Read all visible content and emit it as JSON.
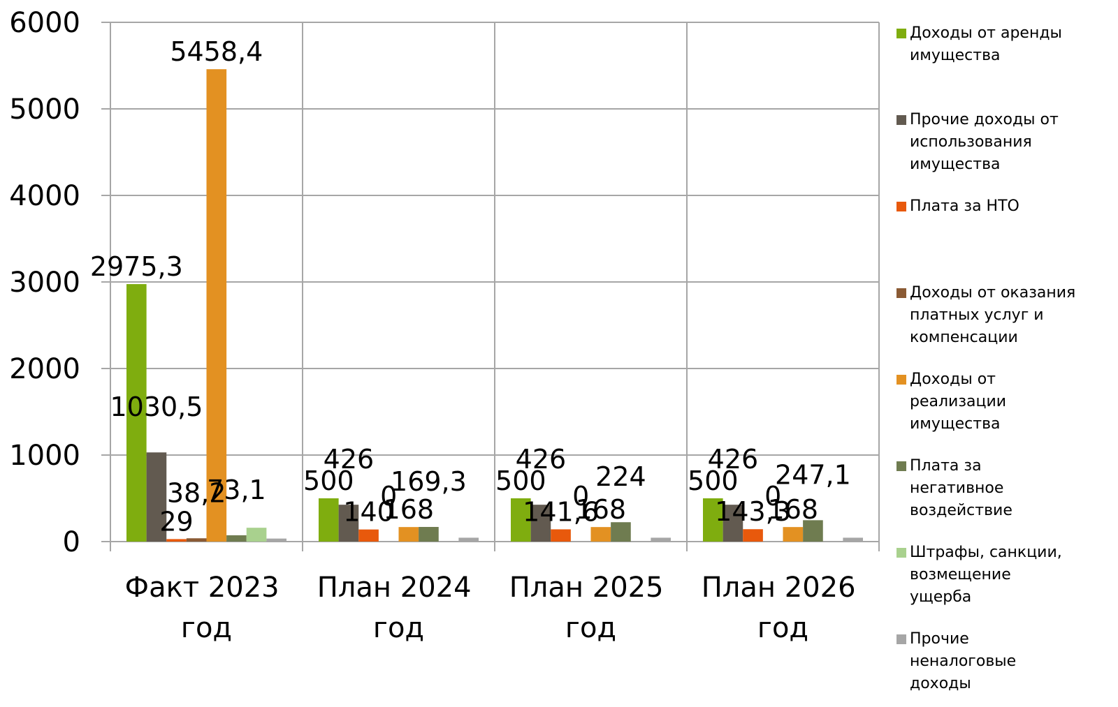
{
  "chart_data": {
    "type": "bar",
    "categories": [
      "Факт 2023 год",
      "План 2024 год",
      "План 2025 год",
      "План 2026 год"
    ],
    "series": [
      {
        "name": "Доходы от аренды имущества",
        "color": "#7fad0f",
        "values": [
          2975.3,
          500,
          500,
          500
        ],
        "value_labels": [
          "2975,3",
          "500",
          "500",
          "500"
        ]
      },
      {
        "name": "Прочие доходы от использования имущества",
        "color": "#625a50",
        "values": [
          1030.5,
          426,
          426,
          426
        ],
        "value_labels": [
          "1030,5",
          "426",
          "426",
          "426"
        ]
      },
      {
        "name": "Плата за НТО",
        "color": "#e8590c",
        "values": [
          29,
          140,
          141.6,
          143.3
        ],
        "value_labels": [
          "29",
          "140",
          "141,6",
          "143,3"
        ]
      },
      {
        "name": "Доходы от оказания платных услуг и компенсации",
        "color": "#8a5a34",
        "values": [
          38.2,
          0,
          0,
          0
        ],
        "value_labels": [
          "38,2",
          "0",
          "0",
          "0"
        ]
      },
      {
        "name": "Доходы от реализации имущества",
        "color": "#e39122",
        "values": [
          5458.4,
          168,
          168,
          168
        ],
        "value_labels": [
          "5458,4",
          "168",
          "168",
          "168"
        ]
      },
      {
        "name": "Плата за негативное воздействие",
        "color": "#6f7c50",
        "values": [
          73.1,
          169.3,
          224,
          247.1
        ],
        "value_labels": [
          "73,1",
          "169,3",
          "224",
          "247,1"
        ]
      },
      {
        "name": "Штрафы, санкции, возмещение ущерба",
        "color": "#a9d18e",
        "values": [
          160,
          0,
          0,
          0
        ],
        "value_labels": [
          null,
          null,
          null,
          null
        ]
      },
      {
        "name": "Прочие неналоговые доходы",
        "color": "#a6a6a6",
        "values": [
          35,
          45,
          45,
          45
        ],
        "value_labels": [
          null,
          null,
          null,
          null
        ]
      }
    ],
    "ylim": [
      0,
      6000
    ],
    "yticks": [
      0,
      1000,
      2000,
      3000,
      4000,
      5000,
      6000
    ],
    "grid": true,
    "legend": "right"
  }
}
